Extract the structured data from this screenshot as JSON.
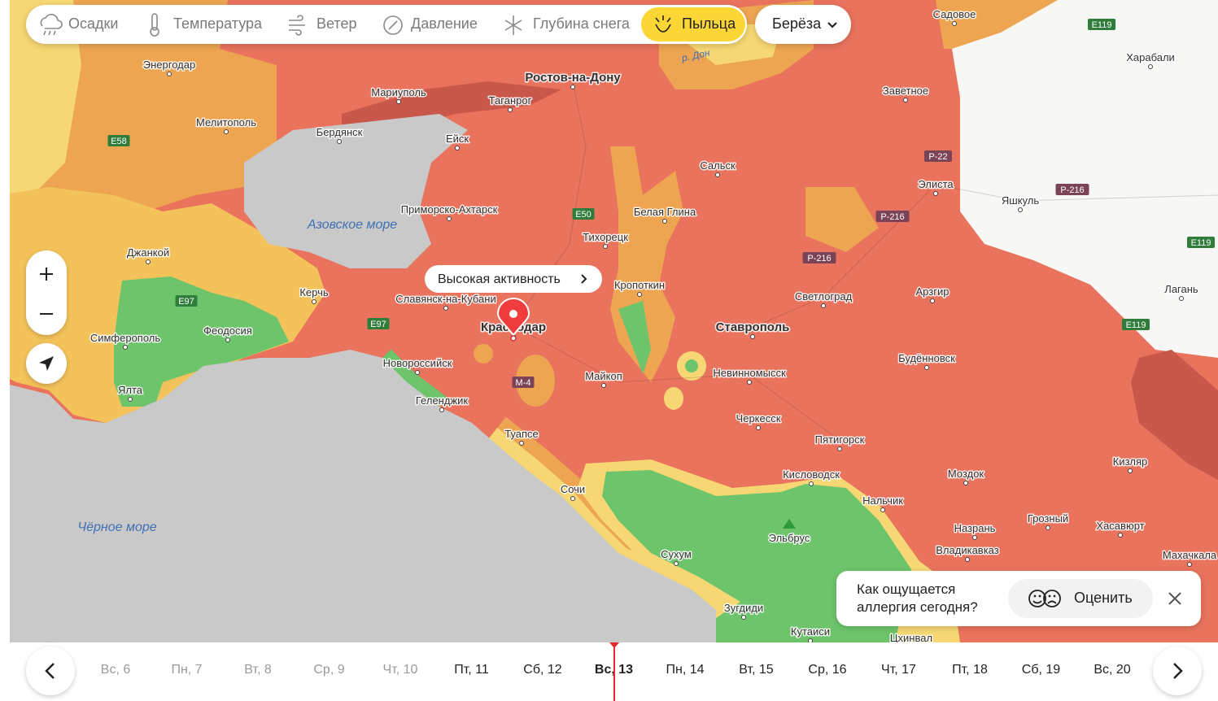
{
  "toolbar": {
    "layers": [
      "Осадки",
      "Температура",
      "Ветер",
      "Давление",
      "Глубина снега",
      "Пыльца"
    ],
    "active_layer": 5,
    "species": "Берёза"
  },
  "map": {
    "seas": [
      "Азовское море",
      "Чёрное море"
    ],
    "rivers": [
      "р. Дон"
    ],
    "peaks": [
      "Эльбрус"
    ],
    "cities": [
      "Энергодар",
      "Мелитополь",
      "Мариуполь",
      "Таганрог",
      "Ростов-на-Дону",
      "Бердянск",
      "Ейск",
      "Садовое",
      "Харабали",
      "Заветное",
      "Сальск",
      "Элиста",
      "Яшкуль",
      "Приморско-Ахтарск",
      "Белая Глина",
      "Тихорецк",
      "Джанкой",
      "Кропоткин",
      "Керчь",
      "Славянск-на-Кубани",
      "Светлоград",
      "Арзгир",
      "Лагань",
      "Феодосия",
      "Симферополь",
      "Краснодар",
      "Ставрополь",
      "Новороссийск",
      "Будённовск",
      "Невинномысск",
      "Майкоп",
      "Ялта",
      "Геленджик",
      "Черкесск",
      "Туапсе",
      "Пятигорск",
      "Кизляр",
      "Кисловодск",
      "Моздок",
      "Сочи",
      "Нальчик",
      "Грозный",
      "Хасавюрт",
      "Назрань",
      "Владикавказ",
      "Махачкала",
      "Сухум",
      "Зугдиди",
      "Кутаиси",
      "Цхинвал"
    ],
    "roads": [
      "E58",
      "E97",
      "E97",
      "E50",
      "М-4",
      "Р-22",
      "Р-216",
      "Р-216",
      "Р-216",
      "E119",
      "E119",
      "E119"
    ],
    "tooltip": "Высокая активность"
  },
  "feedback": {
    "question": "Как ощущается аллергия сегодня?",
    "action": "Оценить"
  },
  "timeline": {
    "days": [
      "Вс, 6",
      "Пн, 7",
      "Вт, 8",
      "Ср, 9",
      "Чт, 10",
      "Пт, 11",
      "Сб, 12",
      "Вс, 13",
      "Пн, 14",
      "Вт, 15",
      "Ср, 16",
      "Чт, 17",
      "Пт, 18",
      "Сб, 19",
      "Вс, 20"
    ],
    "selected": 7
  }
}
